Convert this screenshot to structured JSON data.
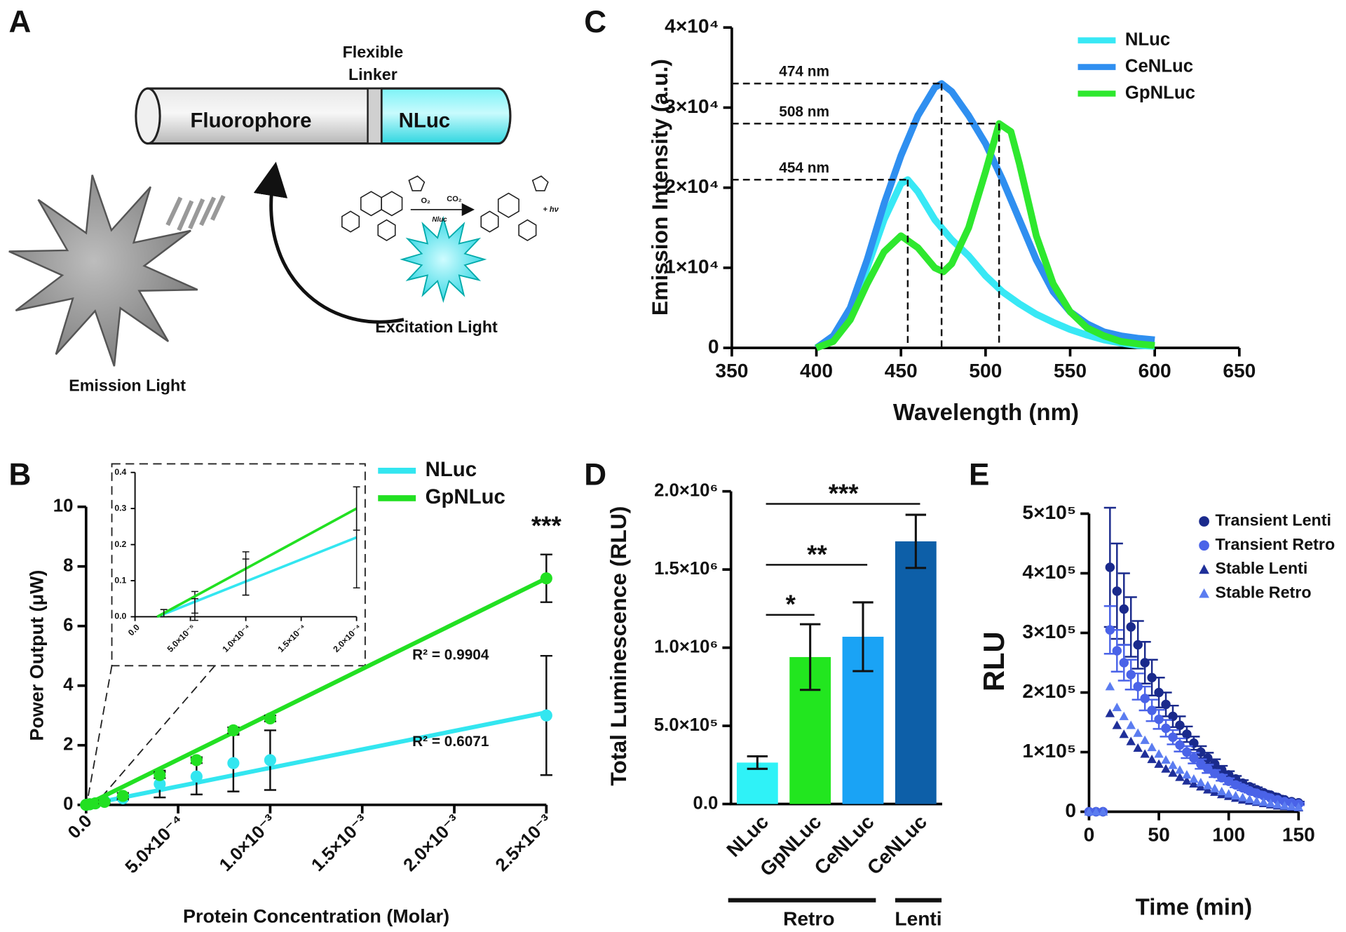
{
  "diagram": {
    "panel": "A",
    "linker_label": [
      "Flexible",
      "Linker"
    ],
    "fluorophore": "Fluorophore",
    "nluc": "NLuc",
    "excitation": "Excitation Light",
    "emission": "Emission Light",
    "reaction": {
      "reagents": [
        "O₂",
        "CO₂"
      ],
      "enzyme": "Nluc",
      "product": "+ hν"
    }
  },
  "chart_data": [
    {
      "panel": "B",
      "type": "scatter",
      "xlabel": "Protein Concentration (Molar)",
      "ylabel": "Power Output (μW)",
      "xlim": [
        0,
        0.0025
      ],
      "ylim": [
        0,
        10
      ],
      "xticks": [
        {
          "value": 0,
          "label": "0.0"
        },
        {
          "value": 0.0005,
          "label": "5.0×10⁻⁴"
        },
        {
          "value": 0.001,
          "label": "1.0×10⁻³"
        },
        {
          "value": 0.0015,
          "label": "1.5×10⁻³"
        },
        {
          "value": 0.002,
          "label": "2.0×10⁻³"
        },
        {
          "value": 0.0025,
          "label": "2.5×10⁻³"
        }
      ],
      "yticks": [
        0,
        2,
        4,
        6,
        8,
        10
      ],
      "series": [
        {
          "name": "NLuc",
          "color": "#33e6f0",
          "marker": "circle",
          "x": [
            0,
            2e-05,
            5e-05,
            0.0001,
            0.0002,
            0.0004,
            0.0006,
            0.0008,
            0.001,
            0.0025
          ],
          "values": [
            0,
            0.02,
            0.05,
            0.12,
            0.22,
            0.7,
            0.95,
            1.4,
            1.5,
            3.0
          ],
          "errors": [
            0,
            0,
            0,
            0,
            0.05,
            0.45,
            0.6,
            0.95,
            1.0,
            2.0
          ],
          "fit_x": [
            0,
            0.0025
          ],
          "fit_values": [
            0,
            3.1
          ]
        },
        {
          "name": "GpNLuc",
          "color": "#22e022",
          "marker": "circle",
          "x": [
            0,
            2e-05,
            5e-05,
            0.0001,
            0.0002,
            0.0004,
            0.0006,
            0.0008,
            0.001,
            0.0025
          ],
          "values": [
            0,
            0.02,
            0.05,
            0.1,
            0.3,
            1.0,
            1.5,
            2.5,
            2.9,
            7.6
          ],
          "errors": [
            0,
            0,
            0,
            0.05,
            0.1,
            0.1,
            0.1,
            0.1,
            0.1,
            0.8
          ],
          "fit_x": [
            0,
            0.0025
          ],
          "fit_values": [
            0,
            7.6
          ]
        }
      ],
      "annotations": [
        {
          "text": "R² = 0.9904",
          "x": 0.00198,
          "y": 5.0
        },
        {
          "text": "R² = 0.6071",
          "x": 0.00198,
          "y": 2.1
        },
        {
          "text": "***",
          "x": 0.0025,
          "y": 9.3
        }
      ],
      "legend": "upper right"
    },
    {
      "type": "scatter",
      "xlim": [
        0,
        0.0002
      ],
      "ylim": [
        0,
        0.4
      ],
      "xticks": [
        {
          "value": 0,
          "label": "0.0"
        },
        {
          "value": 5e-05,
          "label": "5.0×10⁻⁵"
        },
        {
          "value": 0.0001,
          "label": "1.0×10⁻⁴"
        },
        {
          "value": 0.00015,
          "label": "1.5×10⁻⁴"
        },
        {
          "value": 0.0002,
          "label": "2.0×10⁻⁴"
        }
      ],
      "yticks": [
        {
          "value": 0,
          "label": "0.0"
        },
        0.1,
        0.2,
        0.3,
        0.4
      ],
      "series": [
        {
          "color": "#33e6f0",
          "x": [
            2.6e-05,
            5.4e-05,
            0.0001,
            0.0002
          ],
          "values": [
            0.01,
            0.03,
            0.12,
            0.22
          ],
          "errors": [
            0.01,
            0.04,
            0.06,
            0.14
          ],
          "fit_x": [
            2e-05,
            0.0002
          ],
          "fit_values": [
            0,
            0.22
          ]
        },
        {
          "color": "#22e022",
          "x": [
            2.6e-05,
            5.4e-05,
            0.0001,
            0.0002
          ],
          "values": [
            0.01,
            0.03,
            0.11,
            0.3
          ],
          "errors": [
            0.01,
            0.02,
            0.05,
            0.06
          ],
          "fit_x": [
            2e-05,
            0.0002
          ],
          "fit_values": [
            0,
            0.3
          ]
        }
      ]
    },
    {
      "panel": "C",
      "type": "line",
      "xlabel": "Wavelength (nm)",
      "ylabel": "Emission Intensity (a.u.)",
      "xlim": [
        350,
        650
      ],
      "ylim": [
        0,
        40000
      ],
      "xticks": [
        350,
        400,
        450,
        500,
        550,
        600,
        650
      ],
      "yticks": [
        0,
        {
          "value": 10000,
          "label": "1×10⁴"
        },
        {
          "value": 20000,
          "label": "2×10⁴"
        },
        {
          "value": 30000,
          "label": "3×10⁴"
        },
        {
          "value": 40000,
          "label": "4×10⁴"
        }
      ],
      "series": [
        {
          "name": "NLuc",
          "color": "#38e8f5",
          "x": [
            400,
            410,
            420,
            430,
            440,
            450,
            454,
            460,
            470,
            480,
            490,
            500,
            510,
            520,
            530,
            540,
            550,
            560,
            570,
            580,
            590,
            600
          ],
          "values": [
            0,
            1000,
            4000,
            10000,
            16000,
            20500,
            21000,
            19500,
            16000,
            13500,
            11500,
            9000,
            7000,
            5500,
            4200,
            3200,
            2300,
            1600,
            1000,
            600,
            300,
            200
          ]
        },
        {
          "name": "CeNLuc",
          "color": "#2f8ff0",
          "x": [
            400,
            410,
            420,
            430,
            440,
            450,
            460,
            470,
            474,
            480,
            490,
            500,
            510,
            520,
            530,
            540,
            550,
            560,
            570,
            580,
            590,
            600
          ],
          "values": [
            0,
            1500,
            5000,
            11000,
            18000,
            24000,
            29000,
            32500,
            33000,
            32000,
            29000,
            25500,
            21000,
            16000,
            11000,
            7000,
            4500,
            3000,
            2000,
            1500,
            1200,
            1000
          ]
        },
        {
          "name": "GpNLuc",
          "color": "#2ee82e",
          "x": [
            400,
            410,
            420,
            430,
            440,
            450,
            460,
            470,
            475,
            480,
            490,
            500,
            508,
            515,
            520,
            530,
            540,
            550,
            560,
            570,
            580,
            590,
            600
          ],
          "values": [
            0,
            800,
            3500,
            8000,
            12000,
            14000,
            12500,
            10000,
            9500,
            10500,
            15000,
            22000,
            28000,
            27000,
            23000,
            14000,
            8000,
            4500,
            2500,
            1500,
            800,
            500,
            300
          ]
        }
      ],
      "annotations": [
        {
          "text": "474 nm",
          "x": 474,
          "y": 33000
        },
        {
          "text": "508 nm",
          "x": 508,
          "y": 28000
        },
        {
          "text": "454 nm",
          "x": 454,
          "y": 21000
        }
      ],
      "legend": "upper right"
    },
    {
      "panel": "D",
      "type": "bar",
      "ylabel": "Total Luminescence (RLU)",
      "categories": [
        "NLuc",
        "GpNLuc",
        "CeNLuc",
        "CeNLuc"
      ],
      "values": [
        265000,
        940000,
        1070000,
        1680000
      ],
      "errors": [
        40000,
        210000,
        220000,
        170000
      ],
      "colors": [
        "#2ff2f7",
        "#22e61f",
        "#1aa3f5",
        "#0d5fa8"
      ],
      "ylim": [
        0,
        2000000
      ],
      "yticks": [
        {
          "value": 0,
          "label": "0.0"
        },
        {
          "value": 500000,
          "label": "5.0×10⁵"
        },
        {
          "value": 1000000,
          "label": "1.0×10⁶"
        },
        {
          "value": 1500000,
          "label": "1.5×10⁶"
        },
        {
          "value": 2000000,
          "label": "2.0×10⁶"
        }
      ],
      "significance": [
        {
          "text": "*",
          "from": 0,
          "to": 1,
          "y": 1210000
        },
        {
          "text": "**",
          "from": 0,
          "to": 2,
          "y": 1530000
        },
        {
          "text": "***",
          "from": 0,
          "to": 3,
          "y": 1920000
        }
      ],
      "groups": [
        {
          "label": "Retro",
          "from": 0,
          "to": 2
        },
        {
          "label": "Lenti",
          "from": 3,
          "to": 3
        }
      ]
    },
    {
      "panel": "E",
      "type": "scatter",
      "xlabel": "Time (min)",
      "ylabel": "RLU",
      "xlim": [
        0,
        150
      ],
      "ylim": [
        0,
        500000
      ],
      "xticks": [
        0,
        50,
        100,
        150
      ],
      "yticks": [
        0,
        {
          "value": 100000,
          "label": "1×10⁵"
        },
        {
          "value": 200000,
          "label": "2×10⁵"
        },
        {
          "value": 300000,
          "label": "3×10⁵"
        },
        {
          "value": 400000,
          "label": "4×10⁵"
        },
        {
          "value": 500000,
          "label": "5×10⁵"
        }
      ],
      "x": [
        0,
        5,
        10,
        15,
        20,
        25,
        30,
        35,
        40,
        45,
        50,
        55,
        60,
        65,
        70,
        75,
        80,
        85,
        90,
        95,
        100,
        105,
        110,
        115,
        120,
        125,
        130,
        135,
        140,
        145,
        150
      ],
      "series": [
        {
          "name": "Transient Lenti",
          "color": "#1a2a8c",
          "marker": "circle",
          "values": [
            0,
            0,
            0,
            410000,
            370000,
            340000,
            310000,
            280000,
            250000,
            225000,
            200000,
            180000,
            160000,
            145000,
            130000,
            115000,
            100000,
            90000,
            80000,
            70000,
            62000,
            55000,
            48000,
            42000,
            37000,
            32000,
            28000,
            24000,
            20000,
            17000,
            15000
          ],
          "errors": [
            0,
            0,
            0,
            100000,
            80000,
            60000,
            50000,
            40000,
            35000,
            30000,
            25000,
            20000,
            18000,
            15000,
            13000,
            11000,
            10000,
            9000,
            8000,
            7000,
            6000,
            5000,
            5000,
            4000,
            4000,
            3000,
            3000,
            3000,
            2000,
            2000,
            2000
          ]
        },
        {
          "name": "Transient Retro",
          "color": "#4a63e8",
          "marker": "circle",
          "values": [
            0,
            0,
            0,
            305000,
            270000,
            250000,
            230000,
            210000,
            190000,
            170000,
            155000,
            140000,
            125000,
            112000,
            100000,
            90000,
            80000,
            72000,
            64000,
            57000,
            51000,
            45000,
            40000,
            35000,
            31000,
            27000,
            23000,
            20000,
            17000,
            15000,
            13000
          ],
          "errors": [
            0,
            0,
            0,
            40000,
            35000,
            30000,
            25000,
            22000,
            20000,
            18000,
            16000,
            14000,
            12000,
            11000,
            10000,
            9000,
            8000,
            7000,
            6000,
            5000,
            5000,
            4000,
            4000,
            3000,
            3000,
            3000,
            2000,
            2000,
            2000,
            2000,
            2000
          ]
        },
        {
          "name": "Stable Lenti",
          "color": "#1f2f99",
          "marker": "triangle",
          "values": [
            0,
            0,
            0,
            165000,
            145000,
            130000,
            118000,
            107000,
            97000,
            88000,
            80000,
            72000,
            65000,
            58000,
            52000,
            47000,
            42000,
            37000,
            33000,
            29000,
            26000,
            23000,
            20000,
            18000,
            16000,
            14000,
            12000,
            10000,
            9000,
            8000,
            7000
          ]
        },
        {
          "name": "Stable Retro",
          "color": "#5b7cf0",
          "marker": "triangle",
          "values": [
            0,
            0,
            0,
            210000,
            175000,
            160000,
            145000,
            132000,
            120000,
            108000,
            97000,
            87000,
            78000,
            70000,
            62000,
            55000,
            49000,
            44000,
            39000,
            34000,
            30000,
            27000,
            24000,
            21000,
            18000,
            16000,
            14000,
            12000,
            10000,
            9000,
            8000
          ]
        }
      ],
      "legend": "upper right"
    }
  ]
}
